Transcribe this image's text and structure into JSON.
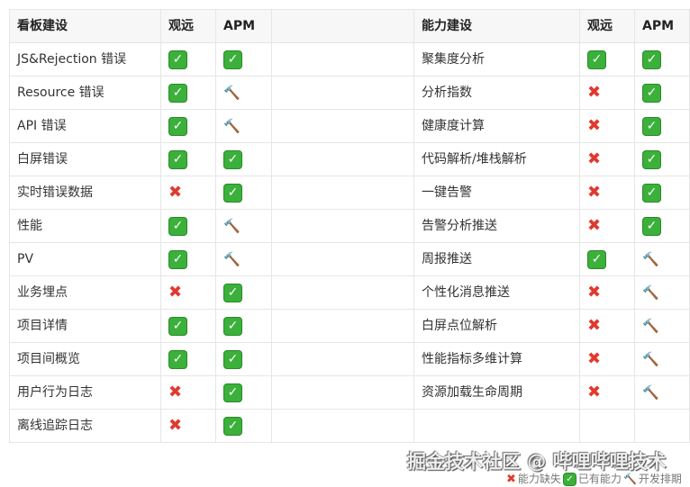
{
  "headers": {
    "left": "看板建设",
    "right": "能力建设",
    "guanyuan": "观远",
    "apm": "APM"
  },
  "icons": {
    "yes": "check-box-icon",
    "no": "cross-icon",
    "dev": "hammer-icon"
  },
  "left_rows": [
    {
      "name": "JS&Rejection 错误",
      "guanyuan": "yes",
      "apm": "yes"
    },
    {
      "name": "Resource 错误",
      "guanyuan": "yes",
      "apm": "dev"
    },
    {
      "name": "API 错误",
      "guanyuan": "yes",
      "apm": "dev"
    },
    {
      "name": "白屏错误",
      "guanyuan": "yes",
      "apm": "yes"
    },
    {
      "name": "实时错误数据",
      "guanyuan": "no",
      "apm": "yes"
    },
    {
      "name": "性能",
      "guanyuan": "yes",
      "apm": "dev"
    },
    {
      "name": "PV",
      "guanyuan": "yes",
      "apm": "dev"
    },
    {
      "name": "业务埋点",
      "guanyuan": "no",
      "apm": "yes"
    },
    {
      "name": "项目详情",
      "guanyuan": "yes",
      "apm": "yes"
    },
    {
      "name": "项目间概览",
      "guanyuan": "yes",
      "apm": "yes"
    },
    {
      "name": "用户行为日志",
      "guanyuan": "no",
      "apm": "yes"
    },
    {
      "name": "离线追踪日志",
      "guanyuan": "no",
      "apm": "yes"
    }
  ],
  "right_rows": [
    {
      "name": "聚集度分析",
      "guanyuan": "yes",
      "apm": "yes"
    },
    {
      "name": "分析指数",
      "guanyuan": "no",
      "apm": "yes"
    },
    {
      "name": "健康度计算",
      "guanyuan": "no",
      "apm": "yes"
    },
    {
      "name": "代码解析/堆栈解析",
      "guanyuan": "no",
      "apm": "yes"
    },
    {
      "name": "一键告警",
      "guanyuan": "no",
      "apm": "yes"
    },
    {
      "name": "告警分析推送",
      "guanyuan": "no",
      "apm": "yes"
    },
    {
      "name": "周报推送",
      "guanyuan": "yes",
      "apm": "dev"
    },
    {
      "name": "个性化消息推送",
      "guanyuan": "no",
      "apm": "dev"
    },
    {
      "name": "白屏点位解析",
      "guanyuan": "no",
      "apm": "dev"
    },
    {
      "name": "性能指标多维计算",
      "guanyuan": "no",
      "apm": "dev"
    },
    {
      "name": "资源加载生命周期",
      "guanyuan": "no",
      "apm": "dev"
    }
  ],
  "watermark": "掘金技术社区 @ 哔哩哔哩技术",
  "legend": {
    "no": "能力缺失",
    "yes": "已有能力",
    "dev": "开发排期"
  }
}
